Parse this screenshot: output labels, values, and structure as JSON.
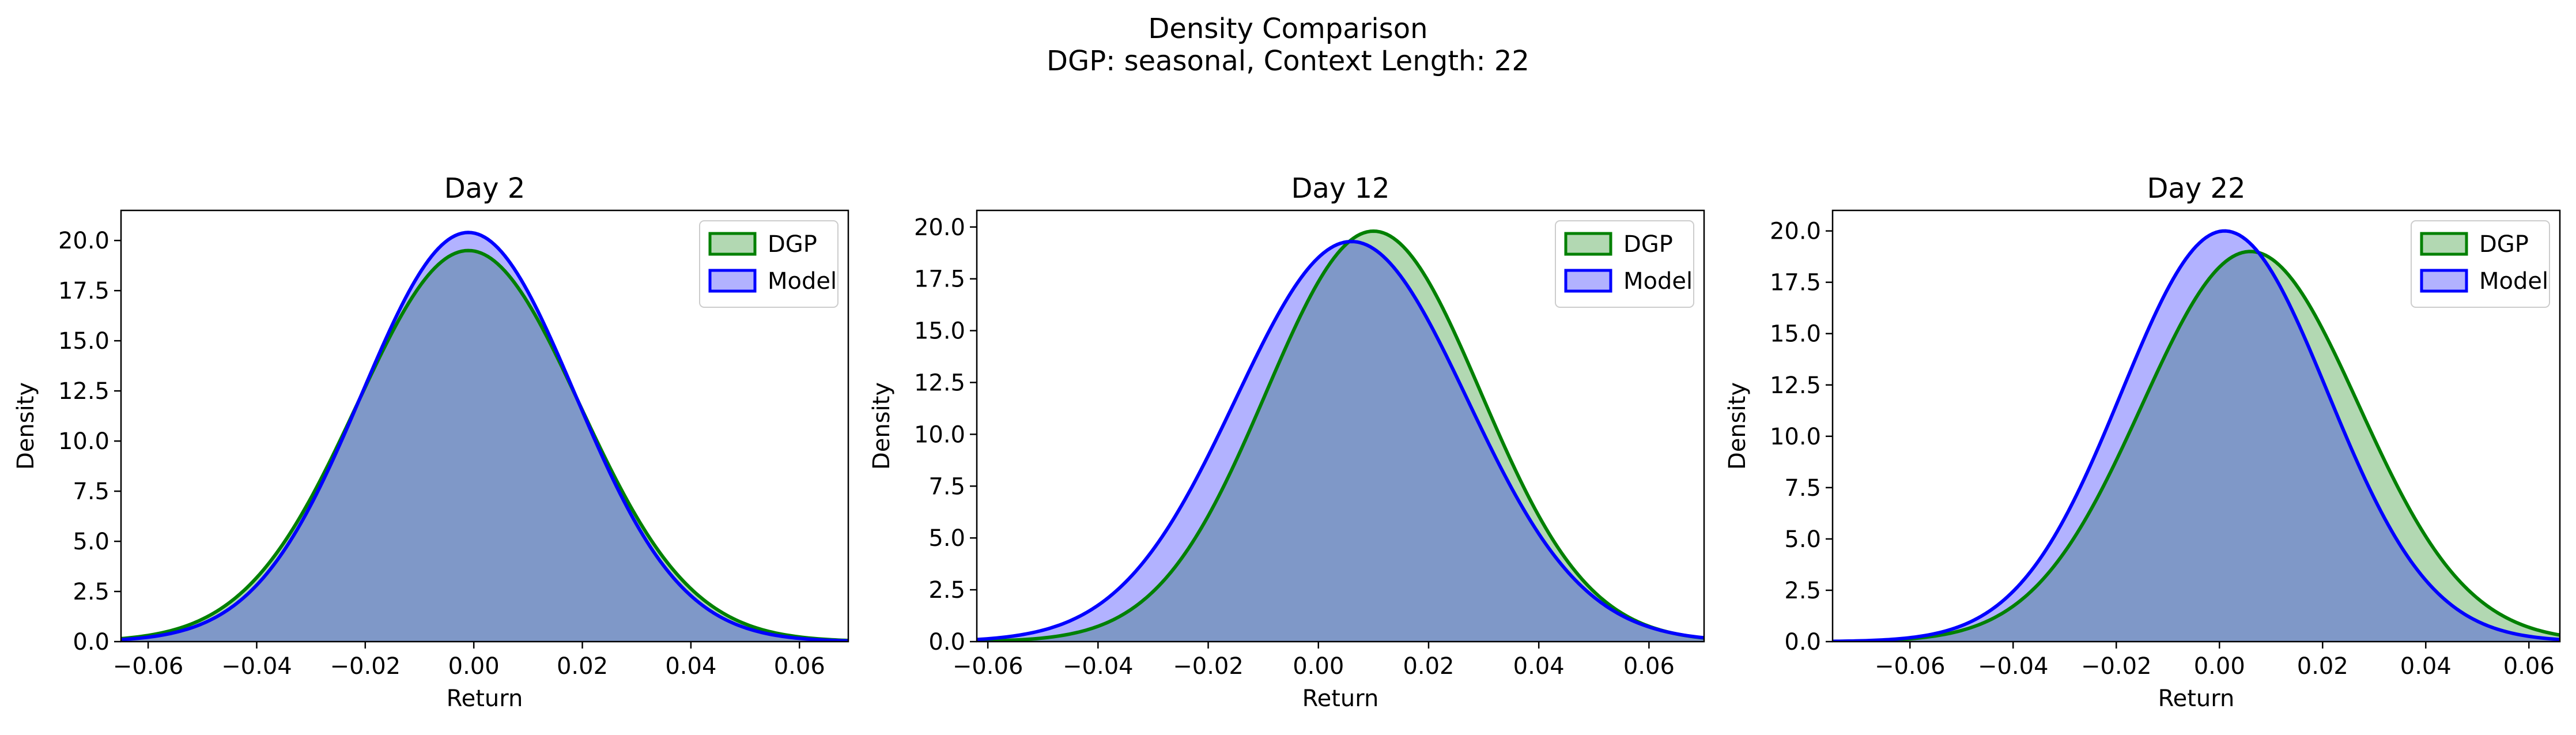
{
  "figure": {
    "title_line1": "Density Comparison",
    "title_line2": "DGP: seasonal, Context Length: 22"
  },
  "colors": {
    "dgp_line": "#008000",
    "dgp_fill": "#b2d8b2",
    "model_line": "#0000ff",
    "model_fill": "#b2b2ff",
    "overlap_fill": "#7f98c8"
  },
  "chart_data": [
    {
      "type": "area",
      "title": "Day 2",
      "xlabel": "Return",
      "ylabel": "Density",
      "xlim": [
        -0.065,
        0.069
      ],
      "ylim": [
        0,
        21.5
      ],
      "xticks": [
        -0.06,
        -0.04,
        -0.02,
        0.0,
        0.02,
        0.04,
        0.06
      ],
      "xtick_labels": [
        "−0.06",
        "−0.04",
        "−0.02",
        "0.00",
        "0.02",
        "0.04",
        "0.06"
      ],
      "yticks": [
        0.0,
        2.5,
        5.0,
        7.5,
        10.0,
        12.5,
        15.0,
        17.5,
        20.0
      ],
      "ytick_labels": [
        "0.0",
        "2.5",
        "5.0",
        "7.5",
        "10.0",
        "12.5",
        "15.0",
        "17.5",
        "20.0"
      ],
      "legend": "top-right",
      "series": [
        {
          "name": "DGP",
          "dist": {
            "mean": -0.001,
            "sd": 0.0205,
            "peak": 19.5
          }
        },
        {
          "name": "Model",
          "dist": {
            "mean": -0.001,
            "sd": 0.0196,
            "peak": 20.4
          }
        }
      ]
    },
    {
      "type": "area",
      "title": "Day 12",
      "xlabel": "Return",
      "ylabel": "Density",
      "xlim": [
        -0.062,
        0.07
      ],
      "ylim": [
        0,
        20.8
      ],
      "xticks": [
        -0.06,
        -0.04,
        -0.02,
        0.0,
        0.02,
        0.04,
        0.06
      ],
      "xtick_labels": [
        "−0.06",
        "−0.04",
        "−0.02",
        "0.00",
        "0.02",
        "0.04",
        "0.06"
      ],
      "yticks": [
        0.0,
        2.5,
        5.0,
        7.5,
        10.0,
        12.5,
        15.0,
        17.5,
        20.0
      ],
      "ytick_labels": [
        "0.0",
        "2.5",
        "5.0",
        "7.5",
        "10.0",
        "12.5",
        "15.0",
        "17.5",
        "20.0"
      ],
      "legend": "top-right",
      "series": [
        {
          "name": "DGP",
          "dist": {
            "mean": 0.01,
            "sd": 0.0195,
            "peak": 19.8
          }
        },
        {
          "name": "Model",
          "dist": {
            "mean": 0.006,
            "sd": 0.021,
            "peak": 19.3
          }
        }
      ]
    },
    {
      "type": "area",
      "title": "Day 22",
      "xlabel": "Return",
      "ylabel": "Density",
      "xlim": [
        -0.075,
        0.066
      ],
      "ylim": [
        0,
        21.0
      ],
      "xticks": [
        -0.06,
        -0.04,
        -0.02,
        0.0,
        0.02,
        0.04,
        0.06
      ],
      "xtick_labels": [
        "−0.06",
        "−0.04",
        "−0.02",
        "0.00",
        "0.02",
        "0.04",
        "0.06"
      ],
      "yticks": [
        0.0,
        2.5,
        5.0,
        7.5,
        10.0,
        12.5,
        15.0,
        17.5,
        20.0
      ],
      "ytick_labels": [
        "0.0",
        "2.5",
        "5.0",
        "7.5",
        "10.0",
        "12.5",
        "15.0",
        "17.5",
        "20.0"
      ],
      "legend": "top-right",
      "series": [
        {
          "name": "DGP",
          "dist": {
            "mean": 0.006,
            "sd": 0.021,
            "peak": 19.0
          }
        },
        {
          "name": "Model",
          "dist": {
            "mean": 0.001,
            "sd": 0.02,
            "peak": 20.0
          }
        }
      ]
    }
  ]
}
